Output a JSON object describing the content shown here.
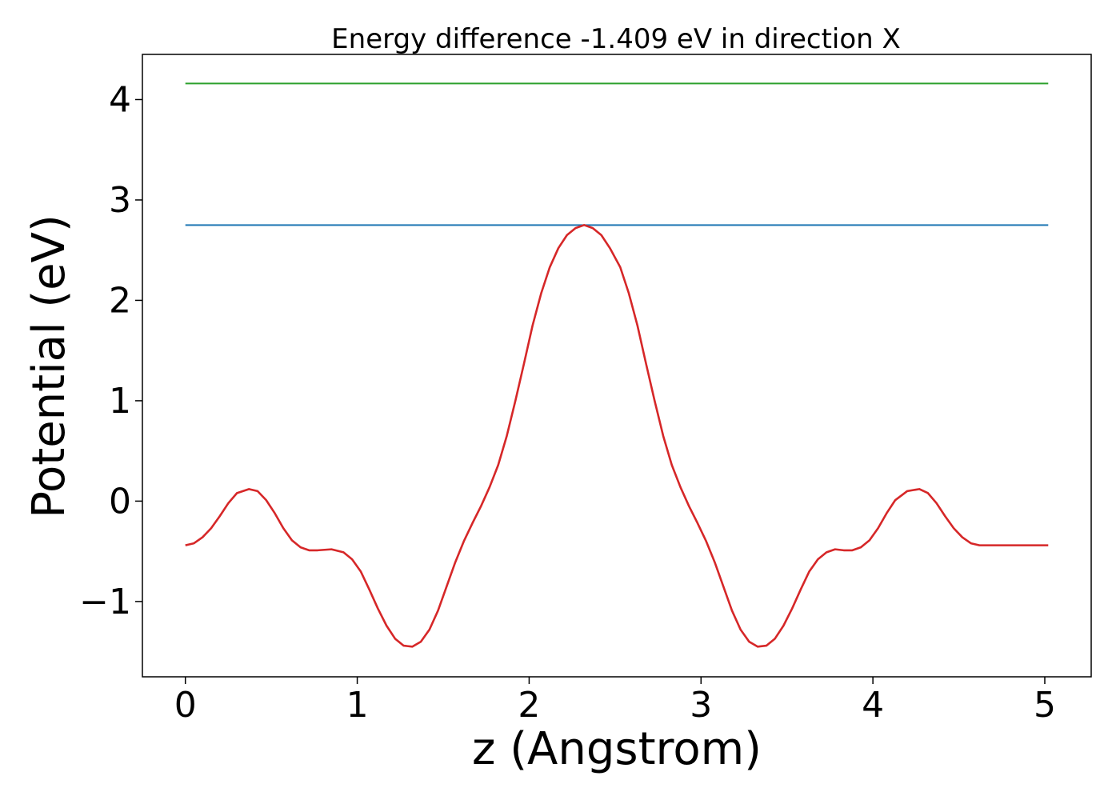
{
  "chart_data": {
    "type": "line",
    "title": "Energy difference -1.409 eV in direction X",
    "xlabel": "z (Angstrom)",
    "ylabel": "Potential (eV)",
    "xlim": [
      -0.25,
      5.27
    ],
    "ylim": [
      -1.75,
      4.45
    ],
    "x_ticks": [
      0,
      1,
      2,
      3,
      4,
      5
    ],
    "x_tick_labels": [
      "0",
      "1",
      "2",
      "3",
      "4",
      "5"
    ],
    "y_ticks": [
      -1,
      0,
      1,
      2,
      3,
      4
    ],
    "y_tick_labels": [
      "−1",
      "0",
      "1",
      "2",
      "3",
      "4"
    ],
    "grid": false,
    "legend": "none",
    "series": [
      {
        "color": "#2ca02c",
        "style": "horizontal",
        "x": [
          0,
          5.02
        ],
        "y": [
          4.16,
          4.16
        ]
      },
      {
        "color": "#1f77b4",
        "style": "horizontal",
        "x": [
          0,
          5.02
        ],
        "y": [
          2.75,
          2.75
        ]
      },
      {
        "color": "#d62728",
        "style": "curve",
        "x": [
          0,
          0.05,
          0.1,
          0.15,
          0.2,
          0.25,
          0.3,
          0.37,
          0.42,
          0.47,
          0.52,
          0.57,
          0.62,
          0.67,
          0.72,
          0.77,
          0.85,
          0.92,
          0.97,
          1.02,
          1.07,
          1.12,
          1.17,
          1.22,
          1.27,
          1.32,
          1.37,
          1.42,
          1.47,
          1.52,
          1.57,
          1.62,
          1.67,
          1.72,
          1.77,
          1.82,
          1.87,
          1.92,
          1.97,
          2.02,
          2.07,
          2.12,
          2.17,
          2.22,
          2.27,
          2.32,
          2.37,
          2.42,
          2.47,
          2.53,
          2.58,
          2.63,
          2.68,
          2.73,
          2.78,
          2.83,
          2.88,
          2.93,
          2.98,
          3.03,
          3.08,
          3.13,
          3.18,
          3.23,
          3.28,
          3.33,
          3.38,
          3.43,
          3.48,
          3.53,
          3.58,
          3.63,
          3.68,
          3.73,
          3.78,
          3.83,
          3.88,
          3.93,
          3.98,
          4.03,
          4.08,
          4.13,
          4.2,
          4.27,
          4.32,
          4.37,
          4.42,
          4.47,
          4.52,
          4.57,
          4.62,
          4.67,
          4.72,
          4.77,
          4.82,
          4.87,
          4.92,
          4.97,
          5.02
        ],
        "y": [
          -0.44,
          -0.42,
          -0.36,
          -0.27,
          -0.15,
          -0.02,
          0.08,
          0.12,
          0.1,
          0.01,
          -0.12,
          -0.27,
          -0.39,
          -0.46,
          -0.49,
          -0.49,
          -0.48,
          -0.51,
          -0.58,
          -0.7,
          -0.88,
          -1.07,
          -1.24,
          -1.37,
          -1.44,
          -1.45,
          -1.4,
          -1.28,
          -1.09,
          -0.85,
          -0.61,
          -0.4,
          -0.22,
          -0.05,
          0.14,
          0.36,
          0.65,
          1.0,
          1.37,
          1.75,
          2.07,
          2.33,
          2.52,
          2.65,
          2.72,
          2.75,
          2.72,
          2.65,
          2.52,
          2.33,
          2.07,
          1.75,
          1.37,
          1.0,
          0.65,
          0.36,
          0.14,
          -0.05,
          -0.22,
          -0.4,
          -0.61,
          -0.85,
          -1.09,
          -1.28,
          -1.4,
          -1.45,
          -1.44,
          -1.37,
          -1.24,
          -1.07,
          -0.88,
          -0.7,
          -0.58,
          -0.51,
          -0.48,
          -0.49,
          -0.49,
          -0.46,
          -0.39,
          -0.27,
          -0.12,
          0.01,
          0.1,
          0.12,
          0.08,
          -0.02,
          -0.15,
          -0.27,
          -0.36,
          -0.42,
          -0.44,
          -0.44,
          -0.44,
          -0.44,
          -0.44,
          -0.44,
          -0.44,
          -0.44,
          -0.44
        ]
      }
    ]
  }
}
